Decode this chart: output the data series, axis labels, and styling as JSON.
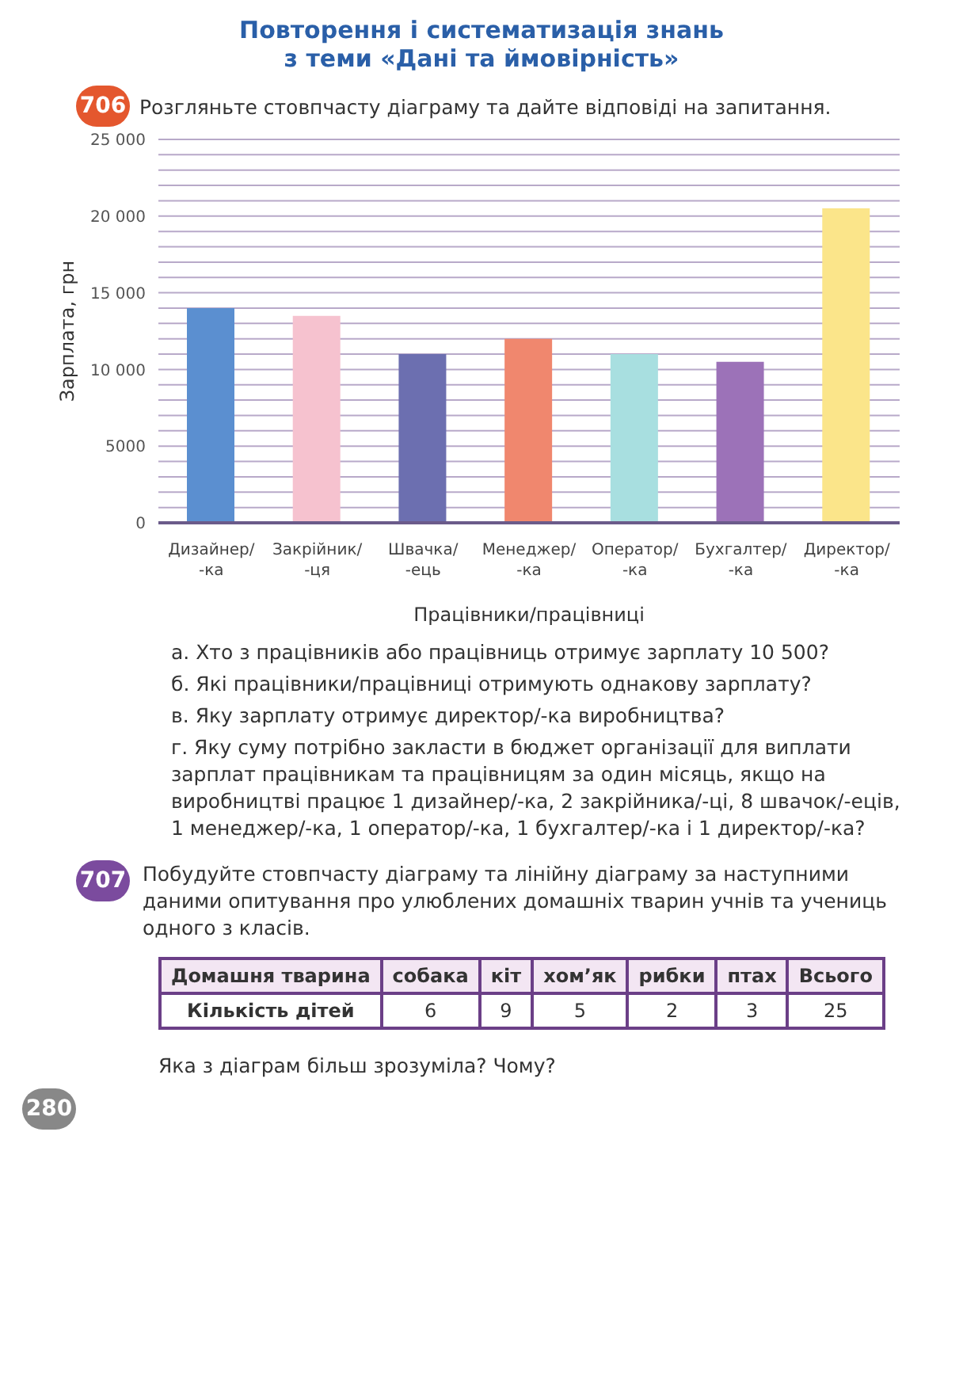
{
  "chart_data": {
    "type": "bar",
    "title": "Повторення і систематизація знань\nз теми «Дані та ймовірність»",
    "xlabel": "Працівники/працівниці",
    "ylabel": "Зарплата, грн",
    "categories": [
      "Дизайнер/\n-ка",
      "Закрійник/\n-ця",
      "Швачка/\n-ець",
      "Менеджер/\n-ка",
      "Оператор/\n-ка",
      "Бухгалтер/\n-ка",
      "Директор/\n-ка"
    ],
    "values": [
      14000,
      13500,
      11000,
      12000,
      11000,
      10500,
      20500
    ],
    "colors": [
      "#5b8fd0",
      "#f6c2cf",
      "#6c6fb0",
      "#f0876e",
      "#a8dfe0",
      "#9c72b8",
      "#fbe58a"
    ],
    "ylim": [
      0,
      25000
    ],
    "yticks": [
      0,
      {
        "value": 1000,
        "label": null
      },
      {
        "value": 2000,
        "label": null
      },
      {
        "value": 3000,
        "label": null
      },
      {
        "value": 4000,
        "label": null
      },
      {
        "value": 5000,
        "label": "5000"
      },
      {
        "value": 6000,
        "label": null
      },
      {
        "value": 7000,
        "label": null
      },
      {
        "value": 8000,
        "label": null
      },
      {
        "value": 9000,
        "label": null
      },
      {
        "value": 10000,
        "label": "10 000"
      },
      {
        "value": 11000,
        "label": null
      },
      {
        "value": 12000,
        "label": null
      },
      {
        "value": 13000,
        "label": null
      },
      {
        "value": 14000,
        "label": null
      },
      {
        "value": 15000,
        "label": "15 000"
      },
      {
        "value": 16000,
        "label": null
      },
      {
        "value": 17000,
        "label": null
      },
      {
        "value": 18000,
        "label": null
      },
      {
        "value": 19000,
        "label": null
      },
      {
        "value": 20000,
        "label": "20 000"
      },
      {
        "value": 21000,
        "label": null
      },
      {
        "value": 22000,
        "label": null
      },
      {
        "value": 23000,
        "label": null
      },
      {
        "value": 24000,
        "label": null
      },
      {
        "value": 25000,
        "label": "25 000"
      }
    ],
    "grid": "y",
    "legend": false,
    "annotations": [
      "706",
      "Розгляньте стовпчасту діаграму та дайте відповіді на запитання.",
      "а. Хто з працівників або працівниць отримує зарплату 10 500?",
      "б. Які працівники/працівниці отримують однакову зарплату?",
      "в. Яку зарплату отримує директор/-ка виробництва?",
      "г. Яку суму потрібно закласти в бюджет організації для виплати зарплат працівникам та працівницям за один місяць, якщо на виробництві працює 1 дизайнер/-ка, 2 закрійника/-ці, 8 швачок/-еців, 1 менеджер/-ка, 1 оператор/-ка, 1 бухгалтер/-ка і 1 директор/-ка?",
      "707",
      "Побудуйте стовпчасту діаграму та лінійну діаграму за наступними даними опитування про улюблених домашніх тварин учнів та учениць одного з класів.",
      "Домашня тварина",
      "собака",
      "кіт",
      "хом’як",
      "рибки",
      "птах",
      "Всього",
      "Кількість дітей",
      "6",
      "9",
      "5",
      "2",
      "3",
      "25",
      "Яка з діаграм більш зрозуміла? Чому?",
      "280"
    ]
  }
}
